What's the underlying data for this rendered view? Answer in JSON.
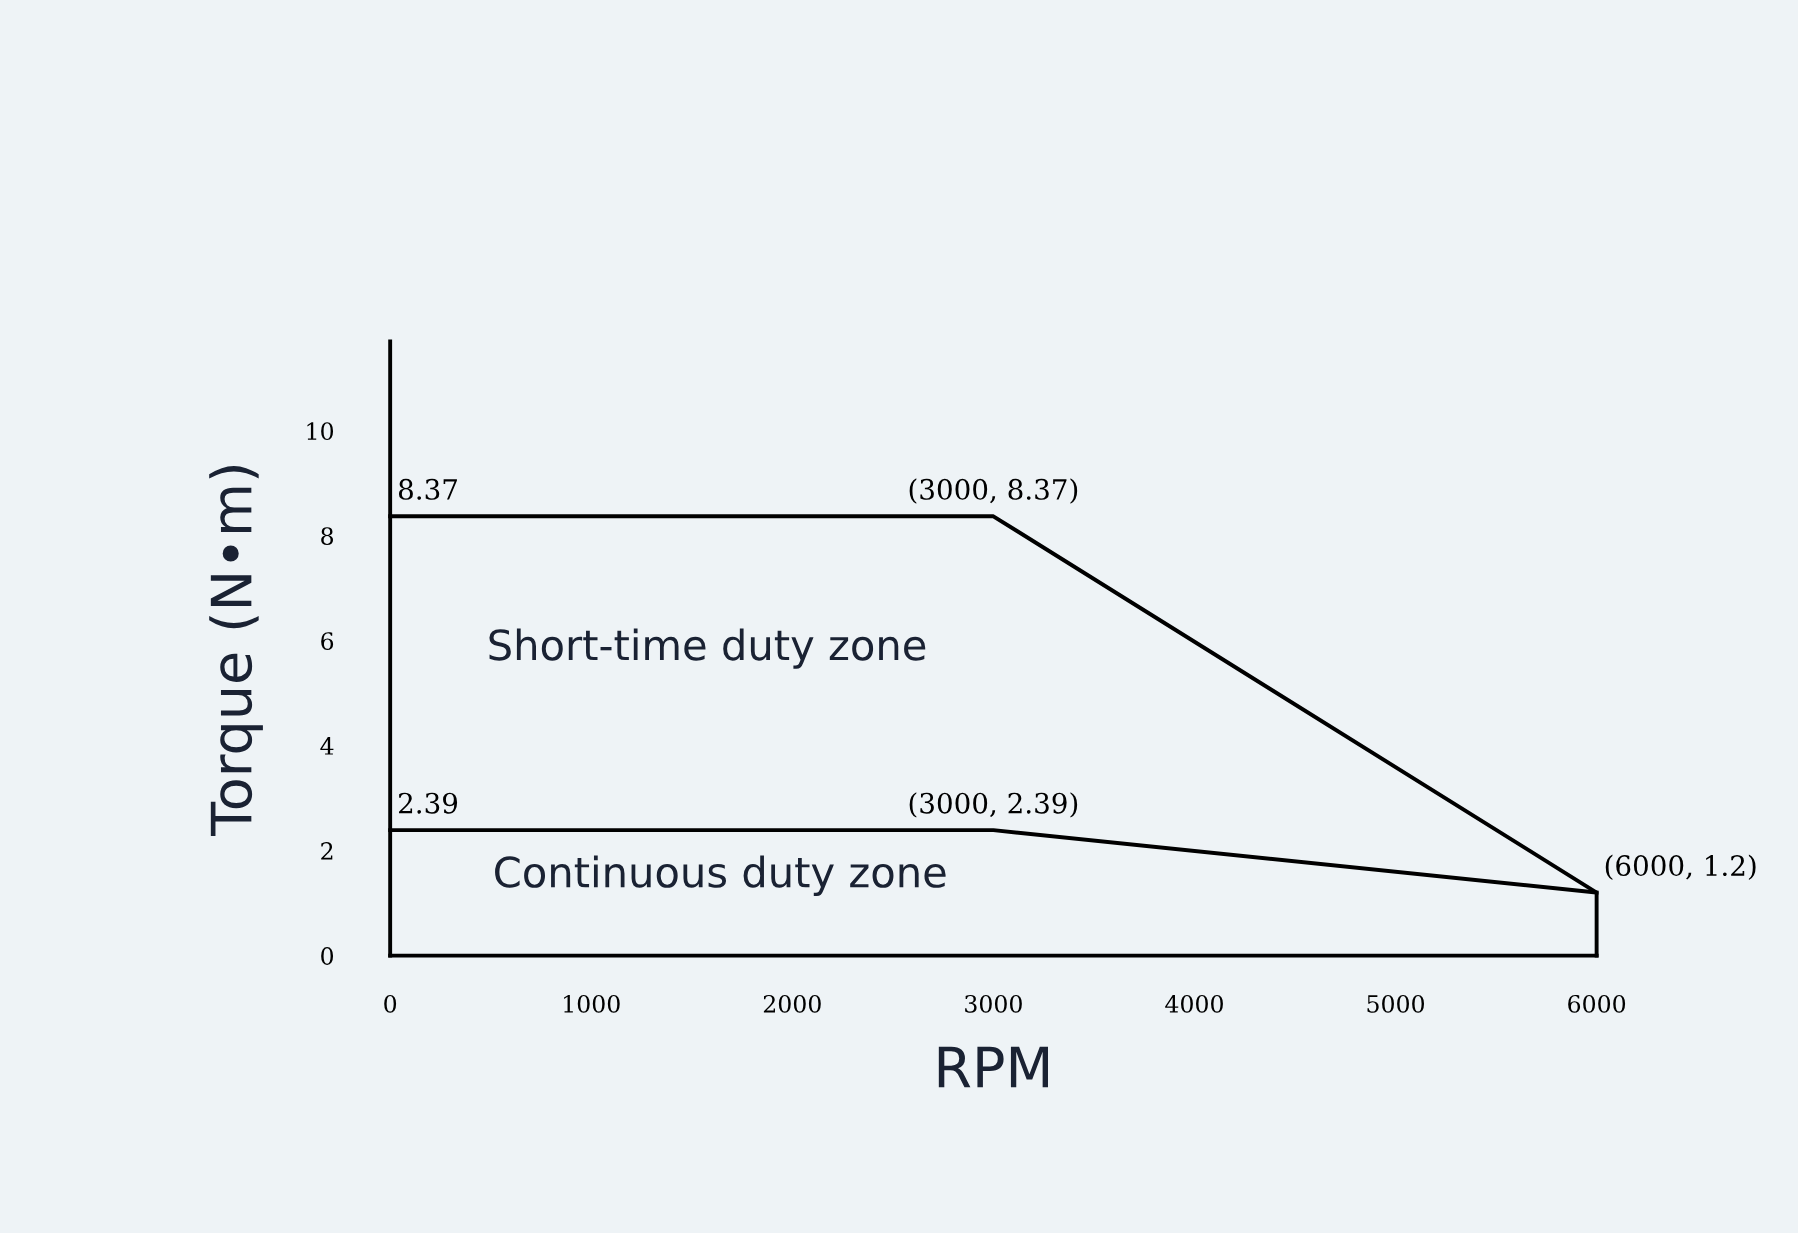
{
  "chart_data": {
    "type": "line",
    "xlabel": "RPM",
    "ylabel": "Torque (N•m)",
    "series": [
      {
        "color": "#000000",
        "x": [
          0,
          3000,
          6000,
          6000
        ],
        "values": [
          8.37,
          8.37,
          1.2,
          0
        ]
      },
      {
        "color": "#000000",
        "x": [
          0,
          3000,
          6000
        ],
        "values": [
          2.39,
          2.39,
          1.2
        ]
      }
    ],
    "xlim": [
      0,
      6000
    ],
    "ylim": [
      0,
      11.7
    ],
    "xticks": [
      0,
      1000,
      2000,
      3000,
      4000,
      5000,
      6000
    ],
    "yticks": [
      0,
      2,
      4,
      6,
      8,
      10
    ],
    "grid": false,
    "marker": "none",
    "line_style": "solid",
    "annotations": [
      {
        "text": "8.37",
        "x": 0,
        "y": 8.37
      },
      {
        "text": "(3000, 8.37)",
        "x": 3000,
        "y": 8.37
      },
      {
        "text": "2.39",
        "x": 0,
        "y": 2.39
      },
      {
        "text": "(3000, 2.39)",
        "x": 3000,
        "y": 2.39
      },
      {
        "text": "(6000, 1.2)",
        "x": 6000,
        "y": 1.2
      },
      "Short-time duty zone",
      "Continuous duty zone"
    ]
  }
}
